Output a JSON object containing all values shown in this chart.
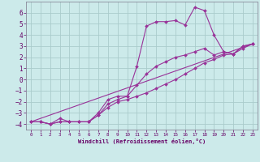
{
  "background_color": "#cceaea",
  "grid_color": "#aacccc",
  "line_color": "#993399",
  "marker_color": "#993399",
  "xlabel": "Windchill (Refroidissement éolien,°C)",
  "xlabel_color": "#660066",
  "tick_color": "#660066",
  "spine_color": "#888899",
  "xlim": [
    -0.5,
    23.5
  ],
  "ylim": [
    -4.5,
    7.0
  ],
  "yticks": [
    -4,
    -3,
    -2,
    -1,
    0,
    1,
    2,
    3,
    4,
    5,
    6
  ],
  "xticks": [
    0,
    1,
    2,
    3,
    4,
    5,
    6,
    7,
    8,
    9,
    10,
    11,
    12,
    13,
    14,
    15,
    16,
    17,
    18,
    19,
    20,
    21,
    22,
    23
  ],
  "series1_x": [
    0,
    1,
    2,
    3,
    4,
    5,
    6,
    7,
    8,
    9,
    10,
    11,
    12,
    13,
    14,
    15,
    16,
    17,
    18,
    19,
    20,
    21,
    22,
    23
  ],
  "series1_y": [
    -3.8,
    -3.8,
    -4.0,
    -3.5,
    -3.8,
    -3.8,
    -3.8,
    -3.0,
    -1.8,
    -1.5,
    -1.5,
    1.2,
    4.8,
    5.2,
    5.2,
    5.3,
    4.9,
    6.5,
    6.2,
    4.0,
    2.5,
    2.3,
    3.0,
    3.2
  ],
  "series2_x": [
    0,
    1,
    2,
    3,
    4,
    5,
    6,
    7,
    8,
    9,
    10,
    11,
    12,
    13,
    14,
    15,
    16,
    17,
    18,
    19,
    20,
    21,
    22,
    23
  ],
  "series2_y": [
    -3.8,
    -3.8,
    -4.0,
    -3.8,
    -3.8,
    -3.8,
    -3.8,
    -3.2,
    -2.2,
    -1.8,
    -1.5,
    -0.5,
    0.5,
    1.2,
    1.6,
    2.0,
    2.2,
    2.5,
    2.8,
    2.2,
    2.5,
    2.3,
    3.0,
    3.2
  ],
  "series3_x": [
    0,
    1,
    2,
    3,
    4,
    5,
    6,
    7,
    8,
    9,
    10,
    11,
    12,
    13,
    14,
    15,
    16,
    17,
    18,
    19,
    20,
    21,
    22,
    23
  ],
  "series3_y": [
    -3.8,
    -3.8,
    -4.0,
    -3.8,
    -3.8,
    -3.8,
    -3.8,
    -3.2,
    -2.5,
    -2.0,
    -1.8,
    -1.5,
    -1.2,
    -0.8,
    -0.4,
    0.0,
    0.5,
    1.0,
    1.5,
    1.8,
    2.2,
    2.3,
    2.8,
    3.2
  ],
  "series4_x": [
    0,
    23
  ],
  "series4_y": [
    -3.8,
    3.2
  ]
}
